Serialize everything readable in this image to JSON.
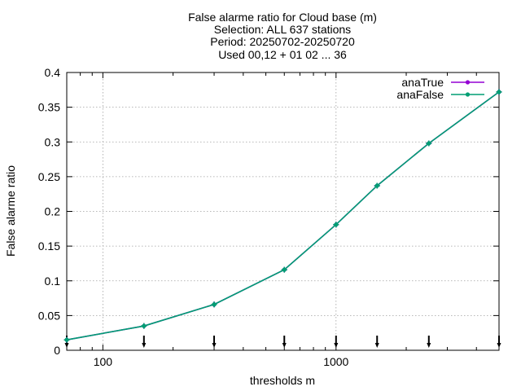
{
  "chart_data": {
    "type": "line",
    "title_lines": [
      "False alarme ratio  for Cloud base (m)",
      "Selection: ALL    637 stations",
      "Period: 20250702-20250720",
      "Used 00,12 + 01 02 ... 36"
    ],
    "xlabel": "thresholds m",
    "ylabel": "False alarme ratio",
    "x_scale": "log",
    "xlim": [
      70,
      5000
    ],
    "ylim": [
      0,
      0.4
    ],
    "x_ticks": [
      100,
      1000
    ],
    "x_tick_labels": [
      "100",
      "1000"
    ],
    "x_minor_ticks": [
      70,
      80,
      90,
      200,
      300,
      400,
      500,
      600,
      700,
      800,
      900,
      2000,
      3000,
      4000,
      5000
    ],
    "y_ticks": [
      0,
      0.05,
      0.1,
      0.15,
      0.2,
      0.25,
      0.3,
      0.35,
      0.4
    ],
    "y_tick_labels": [
      "0",
      "0.05",
      "0.1",
      "0.15",
      "0.2",
      "0.25",
      "0.3",
      "0.35",
      "0.4"
    ],
    "grid": true,
    "legend_position": "top-right",
    "x": [
      70,
      150,
      300,
      600,
      1000,
      1500,
      2500,
      5000
    ],
    "series": [
      {
        "name": "anaTrue",
        "color": "#9400d3",
        "values": [
          0.015,
          0.035,
          0.066,
          0.116,
          0.181,
          0.237,
          0.298,
          0.372
        ]
      },
      {
        "name": "anaFalse",
        "color": "#009e73",
        "values": [
          0.015,
          0.035,
          0.066,
          0.116,
          0.181,
          0.237,
          0.298,
          0.372
        ]
      }
    ],
    "error_marks_x": [
      70,
      150,
      300,
      600,
      1000,
      1500,
      2500,
      5000
    ]
  }
}
